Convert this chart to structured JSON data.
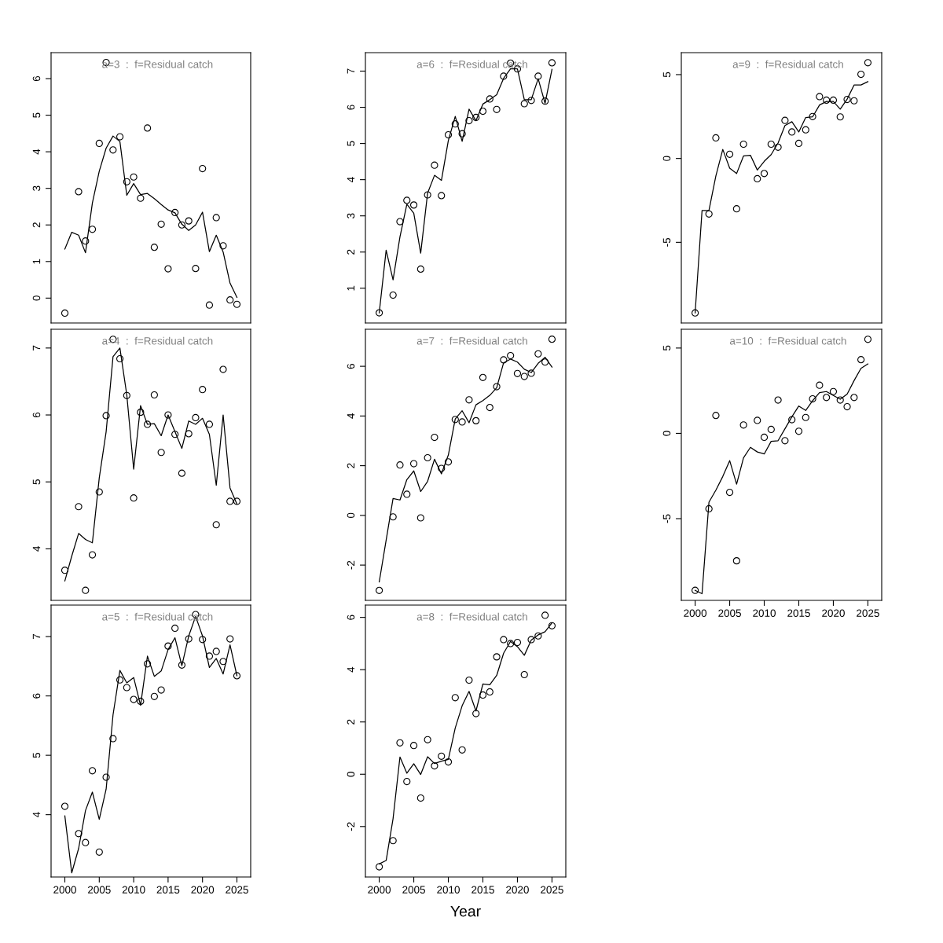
{
  "chart_data": [
    {
      "type": "line",
      "title": "a=3  :  f=Residual catch",
      "xlim": [
        1998,
        2027
      ],
      "ylim": [
        -0.68,
        6.71
      ],
      "yticks": [
        0,
        1,
        2,
        3,
        4,
        5,
        6
      ],
      "tick_labels": "y",
      "series": [
        {
          "type": "scatter",
          "marker": "circle",
          "color": "#000000",
          "x": [
            2000,
            2002,
            2003,
            2004,
            2005,
            2006,
            2007,
            2008,
            2009,
            2010,
            2011,
            2012,
            2013,
            2014,
            2015,
            2016,
            2017,
            2018,
            2019,
            2020,
            2021,
            2022,
            2023,
            2024,
            2025
          ],
          "values": [
            -0.41,
            2.91,
            1.56,
            1.88,
            4.23,
            6.44,
            4.05,
            4.41,
            3.18,
            3.31,
            2.73,
            4.65,
            1.39,
            2.02,
            0.8,
            2.34,
            2.0,
            2.11,
            0.81,
            3.54,
            -0.19,
            2.2,
            1.43,
            -0.05,
            -0.17
          ]
        },
        {
          "line_style": "solid",
          "color": "#000000",
          "x": [
            2000,
            2001,
            2002,
            2003,
            2004,
            2005,
            2006,
            2007,
            2008,
            2009,
            2010,
            2011,
            2012,
            2013,
            2014,
            2015,
            2016,
            2017,
            2018,
            2019,
            2020,
            2021,
            2022,
            2023,
            2024,
            2025
          ],
          "values": [
            1.34,
            1.8,
            1.72,
            1.24,
            2.6,
            3.47,
            4.1,
            4.43,
            4.28,
            2.81,
            3.13,
            2.83,
            2.86,
            2.72,
            2.56,
            2.41,
            2.33,
            2.02,
            1.85,
            2.0,
            2.35,
            1.27,
            1.72,
            1.26,
            0.41,
            0.02
          ]
        }
      ]
    },
    {
      "type": "line",
      "title": "a=6  :  f=Residual catch",
      "xlim": [
        1998,
        2027
      ],
      "ylim": [
        0.04,
        7.51
      ],
      "yticks": [
        1,
        2,
        3,
        4,
        5,
        6,
        7
      ],
      "tick_labels": "y",
      "series": [
        {
          "type": "scatter",
          "marker": "circle",
          "color": "#000000",
          "x": [
            2000,
            2002,
            2003,
            2004,
            2005,
            2006,
            2007,
            2008,
            2009,
            2010,
            2011,
            2012,
            2013,
            2014,
            2015,
            2016,
            2017,
            2018,
            2019,
            2020,
            2021,
            2022,
            2023,
            2024,
            2025
          ],
          "values": [
            0.32,
            0.81,
            2.84,
            3.43,
            3.3,
            1.53,
            3.58,
            4.4,
            3.56,
            5.24,
            5.54,
            5.27,
            5.63,
            5.72,
            5.89,
            6.23,
            5.94,
            6.86,
            7.22,
            7.06,
            6.1,
            6.19,
            6.86,
            6.17,
            7.23
          ]
        },
        {
          "line_style": "solid",
          "color": "#000000",
          "x": [
            2000,
            2001,
            2002,
            2003,
            2004,
            2005,
            2006,
            2007,
            2008,
            2009,
            2010,
            2011,
            2012,
            2013,
            2014,
            2015,
            2016,
            2017,
            2018,
            2019,
            2020,
            2021,
            2022,
            2023,
            2024,
            2025
          ],
          "values": [
            0.32,
            2.05,
            1.23,
            2.42,
            3.32,
            3.07,
            1.97,
            3.63,
            4.12,
            3.98,
            5.08,
            5.75,
            5.06,
            5.95,
            5.63,
            6.09,
            6.21,
            6.35,
            6.8,
            7.06,
            7.06,
            6.21,
            6.21,
            6.79,
            6.11,
            7.05
          ]
        }
      ]
    },
    {
      "type": "line",
      "title": "a=9  :  f=Residual catch",
      "xlim": [
        1998,
        2027
      ],
      "ylim": [
        -9.81,
        6.31
      ],
      "yticks": [
        -5,
        0,
        5
      ],
      "tick_labels": "y",
      "series": [
        {
          "type": "scatter",
          "marker": "circle",
          "color": "#000000",
          "x": [
            2000,
            2002,
            2003,
            2005,
            2006,
            2007,
            2009,
            2010,
            2011,
            2012,
            2013,
            2014,
            2015,
            2016,
            2017,
            2018,
            2019,
            2020,
            2021,
            2022,
            2023,
            2024,
            2025
          ],
          "values": [
            -9.21,
            -3.31,
            1.23,
            0.25,
            -3.0,
            0.85,
            -1.21,
            -0.9,
            0.85,
            0.67,
            2.27,
            1.58,
            0.9,
            1.71,
            2.5,
            3.69,
            3.48,
            3.48,
            2.48,
            3.52,
            3.44,
            5.02,
            5.71
          ]
        },
        {
          "line_style": "solid",
          "color": "#000000",
          "x": [
            2000,
            2001,
            2002,
            2003,
            2004,
            2005,
            2006,
            2007,
            2008,
            2009,
            2010,
            2011,
            2012,
            2013,
            2014,
            2015,
            2016,
            2017,
            2018,
            2019,
            2020,
            2021,
            2022,
            2023,
            2024,
            2025
          ],
          "values": [
            -9.21,
            -3.1,
            -3.1,
            -1.04,
            0.54,
            -0.58,
            -0.9,
            0.15,
            0.19,
            -0.69,
            -0.17,
            0.23,
            0.92,
            1.96,
            2.19,
            1.58,
            2.44,
            2.48,
            3.19,
            3.4,
            3.4,
            2.94,
            3.54,
            4.38,
            4.38,
            4.58
          ]
        }
      ]
    },
    {
      "type": "line",
      "title": "a=4  :  f=Residual catch",
      "xlim": [
        1998,
        2027
      ],
      "ylim": [
        3.23,
        7.28
      ],
      "yticks": [
        4,
        5,
        6,
        7
      ],
      "tick_labels": "y",
      "series": [
        {
          "type": "scatter",
          "marker": "circle",
          "color": "#000000",
          "x": [
            2000,
            2002,
            2003,
            2004,
            2005,
            2006,
            2007,
            2008,
            2009,
            2010,
            2011,
            2012,
            2013,
            2014,
            2015,
            2016,
            2017,
            2018,
            2019,
            2020,
            2021,
            2022,
            2023,
            2024,
            2025
          ],
          "values": [
            3.68,
            4.63,
            3.38,
            3.91,
            4.85,
            5.99,
            7.13,
            6.84,
            6.29,
            4.76,
            6.04,
            5.86,
            6.3,
            5.44,
            6.0,
            5.71,
            5.13,
            5.72,
            5.96,
            6.38,
            5.86,
            4.36,
            6.68,
            4.71,
            4.71
          ]
        },
        {
          "line_style": "solid",
          "color": "#000000",
          "x": [
            2000,
            2001,
            2002,
            2003,
            2004,
            2005,
            2006,
            2007,
            2008,
            2009,
            2010,
            2011,
            2012,
            2013,
            2014,
            2015,
            2016,
            2017,
            2018,
            2019,
            2020,
            2021,
            2022,
            2023,
            2024,
            2025
          ],
          "values": [
            3.52,
            3.89,
            4.23,
            4.14,
            4.09,
            5.06,
            5.75,
            6.87,
            7.0,
            6.3,
            5.19,
            6.14,
            5.86,
            5.87,
            5.69,
            6.0,
            5.75,
            5.5,
            5.91,
            5.86,
            5.95,
            5.71,
            4.95,
            6.0,
            4.91,
            4.67
          ]
        }
      ]
    },
    {
      "type": "line",
      "title": "a=7  :  f=Residual catch",
      "xlim": [
        1998,
        2027
      ],
      "ylim": [
        -3.42,
        7.49
      ],
      "yticks": [
        -2,
        0,
        2,
        4,
        6
      ],
      "tick_labels": "y",
      "series": [
        {
          "type": "scatter",
          "marker": "circle",
          "color": "#000000",
          "x": [
            2000,
            2002,
            2003,
            2004,
            2005,
            2006,
            2007,
            2008,
            2009,
            2010,
            2011,
            2012,
            2013,
            2014,
            2015,
            2016,
            2017,
            2018,
            2019,
            2020,
            2021,
            2022,
            2023,
            2024,
            2025
          ],
          "values": [
            -3.02,
            -0.06,
            2.03,
            0.85,
            2.08,
            -0.1,
            2.32,
            3.14,
            1.89,
            2.15,
            3.86,
            3.76,
            4.65,
            3.81,
            5.55,
            4.34,
            5.18,
            6.26,
            6.43,
            5.71,
            5.59,
            5.72,
            6.5,
            6.17,
            7.09
          ]
        },
        {
          "line_style": "solid",
          "color": "#000000",
          "x": [
            2000,
            2001,
            2002,
            2003,
            2004,
            2005,
            2006,
            2007,
            2008,
            2009,
            2010,
            2011,
            2012,
            2013,
            2014,
            2015,
            2016,
            2017,
            2018,
            2019,
            2020,
            2021,
            2022,
            2023,
            2024,
            2025
          ],
          "values": [
            -2.68,
            -1.0,
            0.68,
            0.62,
            1.44,
            1.79,
            0.96,
            1.37,
            2.26,
            1.67,
            2.43,
            3.88,
            4.21,
            3.73,
            4.45,
            4.62,
            4.83,
            5.14,
            6.14,
            6.29,
            6.17,
            5.88,
            5.75,
            6.12,
            6.36,
            5.97
          ]
        }
      ]
    },
    {
      "type": "line",
      "title": "a=10  :  f=Residual catch",
      "xlim": [
        1998,
        2027
      ],
      "xticks": [
        2000,
        2005,
        2010,
        2015,
        2020,
        2025
      ],
      "ylim": [
        -9.79,
        6.1
      ],
      "yticks": [
        -5,
        0,
        5
      ],
      "series": [
        {
          "type": "scatter",
          "marker": "circle",
          "color": "#000000",
          "x": [
            2000,
            2002,
            2003,
            2005,
            2006,
            2007,
            2009,
            2010,
            2011,
            2012,
            2013,
            2014,
            2015,
            2016,
            2017,
            2018,
            2019,
            2020,
            2021,
            2022,
            2023,
            2024,
            2025
          ],
          "values": [
            -9.2,
            -4.42,
            1.05,
            -3.46,
            -7.47,
            0.49,
            0.76,
            -0.23,
            0.23,
            1.95,
            -0.43,
            0.8,
            0.12,
            0.93,
            2.02,
            2.82,
            2.1,
            2.45,
            1.95,
            1.56,
            2.1,
            4.32,
            5.51
          ]
        },
        {
          "line_style": "solid",
          "color": "#000000",
          "x": [
            2000,
            2001,
            2002,
            2003,
            2004,
            2005,
            2006,
            2007,
            2008,
            2009,
            2010,
            2011,
            2012,
            2013,
            2014,
            2015,
            2016,
            2017,
            2018,
            2019,
            2020,
            2021,
            2022,
            2023,
            2024,
            2025
          ],
          "values": [
            -9.2,
            -9.4,
            -4.03,
            -3.33,
            -2.53,
            -1.6,
            -2.98,
            -1.44,
            -0.82,
            -1.09,
            -1.21,
            -0.47,
            -0.43,
            0.27,
            0.97,
            1.6,
            1.34,
            1.91,
            2.39,
            2.45,
            2.22,
            2.0,
            2.3,
            3.09,
            3.81,
            4.07
          ]
        }
      ]
    },
    {
      "type": "line",
      "title": "a=5  :  f=Residual catch",
      "xlim": [
        1998,
        2027
      ],
      "xticks": [
        2000,
        2005,
        2010,
        2015,
        2020,
        2025
      ],
      "ylim": [
        2.95,
        7.53
      ],
      "yticks": [
        4,
        5,
        6,
        7
      ],
      "series": [
        {
          "type": "scatter",
          "marker": "circle",
          "color": "#000000",
          "x": [
            2000,
            2002,
            2003,
            2004,
            2005,
            2006,
            2007,
            2008,
            2009,
            2010,
            2011,
            2012,
            2013,
            2014,
            2015,
            2016,
            2017,
            2018,
            2019,
            2020,
            2021,
            2022,
            2023,
            2024,
            2025
          ],
          "values": [
            4.14,
            3.68,
            3.53,
            4.74,
            3.37,
            4.63,
            5.28,
            6.27,
            6.14,
            5.94,
            5.91,
            6.54,
            5.99,
            6.1,
            6.84,
            7.14,
            6.52,
            6.96,
            7.37,
            6.95,
            6.67,
            6.75,
            6.58,
            6.96,
            6.34
          ]
        },
        {
          "line_style": "solid",
          "color": "#000000",
          "x": [
            2000,
            2001,
            2002,
            2003,
            2004,
            2005,
            2006,
            2007,
            2008,
            2009,
            2010,
            2011,
            2012,
            2013,
            2014,
            2015,
            2016,
            2017,
            2018,
            2019,
            2020,
            2021,
            2022,
            2023,
            2024,
            2025
          ],
          "values": [
            3.98,
            3.02,
            3.43,
            4.07,
            4.38,
            3.92,
            4.43,
            5.68,
            6.43,
            6.22,
            6.31,
            5.84,
            6.67,
            6.33,
            6.42,
            6.78,
            6.98,
            6.51,
            7.01,
            7.34,
            7.01,
            6.48,
            6.63,
            6.37,
            6.86,
            6.34
          ]
        }
      ]
    },
    {
      "type": "line",
      "title": "a=8  :  f=Residual catch",
      "xlabel": "Year",
      "xlim": [
        1998,
        2027
      ],
      "xticks": [
        2000,
        2005,
        2010,
        2015,
        2020,
        2025
      ],
      "ylim": [
        -3.93,
        6.47
      ],
      "yticks": [
        -2,
        0,
        2,
        4,
        6
      ],
      "series": [
        {
          "type": "scatter",
          "marker": "circle",
          "color": "#000000",
          "x": [
            2000,
            2002,
            2003,
            2004,
            2005,
            2006,
            2007,
            2008,
            2009,
            2010,
            2011,
            2012,
            2013,
            2014,
            2015,
            2016,
            2017,
            2018,
            2019,
            2020,
            2021,
            2022,
            2023,
            2024,
            2025
          ],
          "values": [
            -3.54,
            -2.54,
            1.2,
            -0.28,
            1.1,
            -0.91,
            1.32,
            0.32,
            0.69,
            0.47,
            2.93,
            0.93,
            3.6,
            2.32,
            3.03,
            3.15,
            4.49,
            5.15,
            5.0,
            5.04,
            3.81,
            5.15,
            5.29,
            6.08,
            5.68
          ]
        },
        {
          "line_style": "solid",
          "color": "#000000",
          "x": [
            2000,
            2001,
            2002,
            2003,
            2004,
            2005,
            2006,
            2007,
            2008,
            2009,
            2010,
            2011,
            2012,
            2013,
            2014,
            2015,
            2016,
            2017,
            2018,
            2019,
            2020,
            2021,
            2022,
            2023,
            2024,
            2025
          ],
          "values": [
            -3.43,
            -3.3,
            -1.7,
            0.66,
            0.04,
            0.4,
            -0.01,
            0.67,
            0.41,
            0.5,
            0.57,
            1.77,
            2.62,
            3.17,
            2.42,
            3.45,
            3.42,
            3.78,
            4.63,
            5.08,
            4.88,
            4.55,
            5.13,
            5.33,
            5.45,
            5.79
          ]
        }
      ]
    }
  ]
}
